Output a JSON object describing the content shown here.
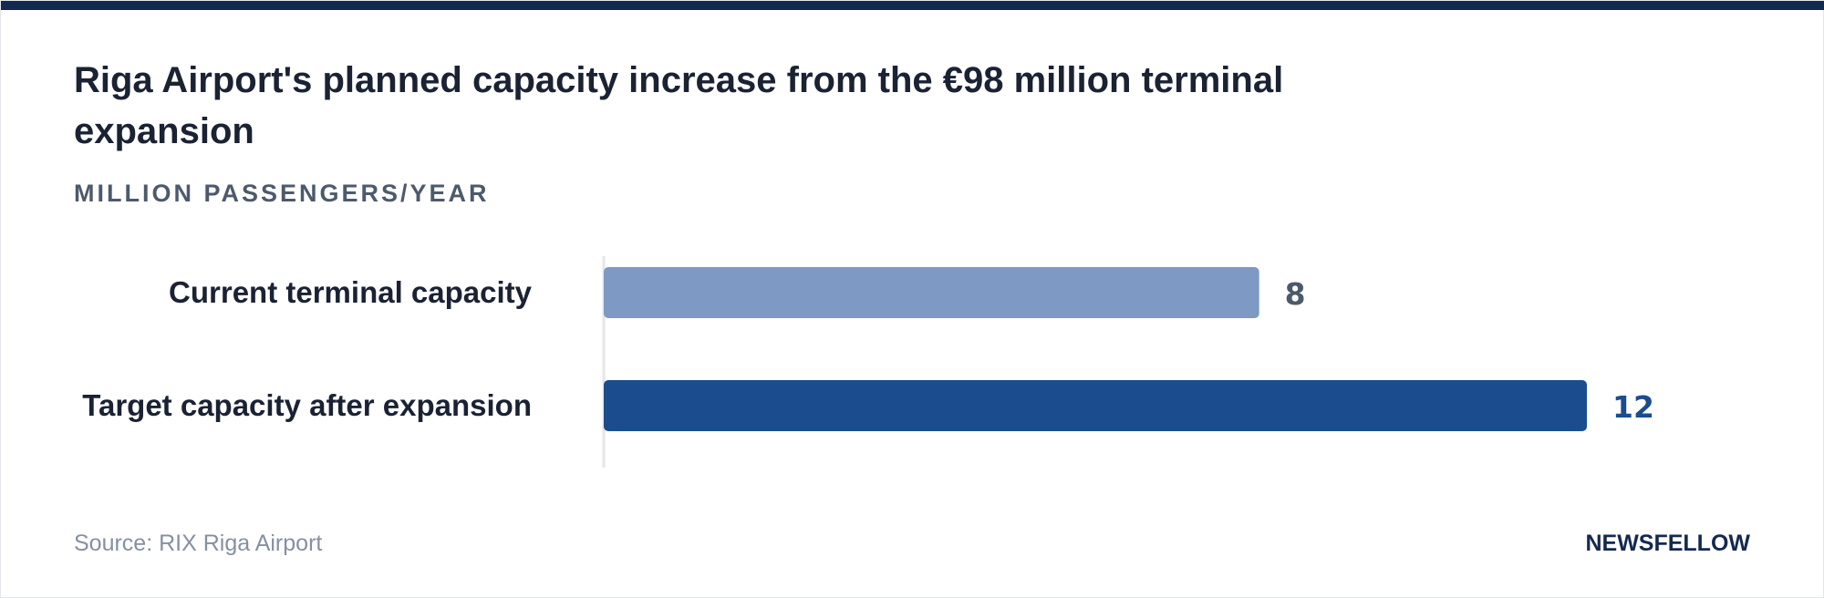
{
  "header": {
    "title": "Riga Airport's planned capacity increase from the €98 million terminal expansion",
    "subtitle": "MILLION PASSENGERS/YEAR"
  },
  "footer": {
    "source": "Source: RIX Riga Airport",
    "brand": "NEWSFELLOW"
  },
  "chart_data": {
    "type": "bar",
    "orientation": "horizontal",
    "title": "Riga Airport's planned capacity increase from the €98 million terminal expansion",
    "subtitle": "MILLION PASSENGERS/YEAR",
    "categories": [
      "Current terminal capacity",
      "Target capacity after expansion"
    ],
    "values": [
      8,
      12
    ],
    "value_labels": [
      "8",
      "12"
    ],
    "bar_colors": [
      "#7d99c4",
      "#1b4d8e"
    ],
    "value_label_colors": [
      "#4d5a6b",
      "#1b4d8e"
    ],
    "xlim": [
      0,
      12
    ],
    "grid": false,
    "legend": "none"
  }
}
